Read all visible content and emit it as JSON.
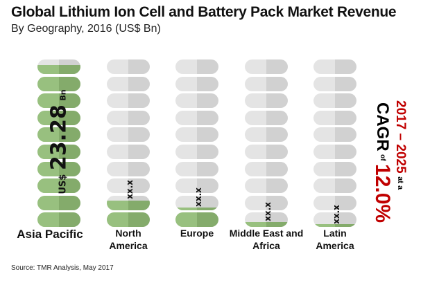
{
  "chart_data": {
    "type": "bar",
    "title": "Global Lithium Ion Cell and Battery Pack Market Revenue",
    "subtitle": "By Geography, 2016 (US$ Bn)",
    "categories": [
      "Asia Pacific",
      "North America",
      "Europe",
      "Middle East and Africa",
      "Latin America"
    ],
    "value_labels": [
      "US$ 23.28 Bn",
      "xx.x",
      "xx.x",
      "xx.x",
      "xx.x"
    ],
    "asia_value": {
      "prefix": "US$",
      "value": "23.28",
      "unit": "Bn"
    },
    "fill_levels_out_of_10": [
      9.6,
      1.65,
      1.2,
      0.35,
      0.2
    ],
    "cagr": {
      "period": "2017 – 2025",
      "at_a": "at a",
      "cagr": "CAGR",
      "of": "of",
      "rate": "12.0%"
    },
    "source": "Source: TMR Analysis, May 2017",
    "colors": {
      "green": "#98c07f",
      "grey": "#e4e4e4",
      "red": "#c00000"
    }
  }
}
